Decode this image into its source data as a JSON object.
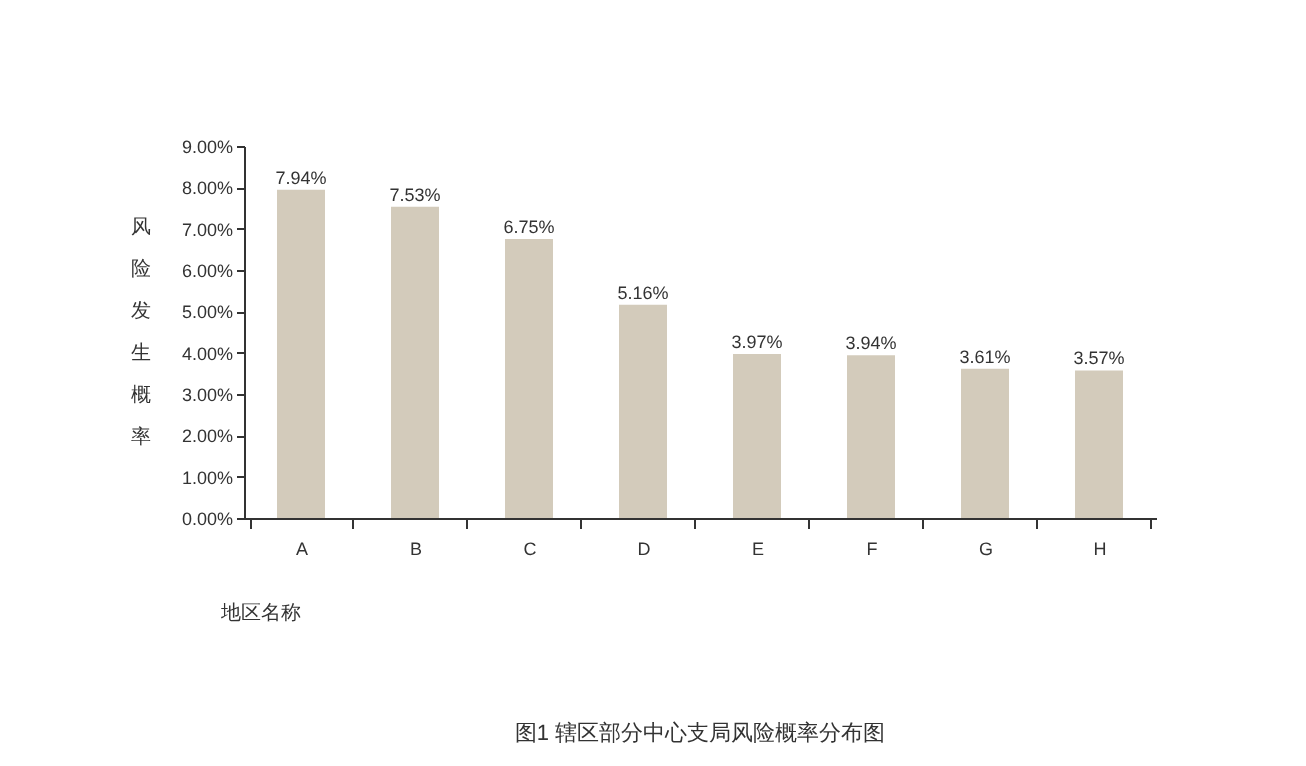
{
  "chart_data": {
    "type": "bar",
    "title": "图1  辖区部分中心支局风险概率分布图",
    "xlabel": "地区名称",
    "ylabel": "风险发生概率",
    "categories": [
      "A",
      "B",
      "C",
      "D",
      "E",
      "F",
      "G",
      "H"
    ],
    "values": [
      7.94,
      7.53,
      6.75,
      5.16,
      3.97,
      3.94,
      3.61,
      3.57
    ],
    "value_labels": [
      "7.94%",
      "7.53%",
      "6.75%",
      "5.16%",
      "3.97%",
      "3.94%",
      "3.61%",
      "3.57%"
    ],
    "color": "#d3cbbb",
    "ylim": [
      0,
      9
    ],
    "yticks": [
      {
        "value": 0,
        "label": "0.00%"
      },
      {
        "value": 1,
        "label": "1.00%"
      },
      {
        "value": 2,
        "label": "2.00%"
      },
      {
        "value": 3,
        "label": "3.00%"
      },
      {
        "value": 4,
        "label": "4.00%"
      },
      {
        "value": 5,
        "label": "5.00%"
      },
      {
        "value": 6,
        "label": "6.00%"
      },
      {
        "value": 7,
        "label": "7.00%"
      },
      {
        "value": 8,
        "label": "8.00%"
      },
      {
        "value": 9,
        "label": "9.00%"
      }
    ],
    "grid": false
  }
}
